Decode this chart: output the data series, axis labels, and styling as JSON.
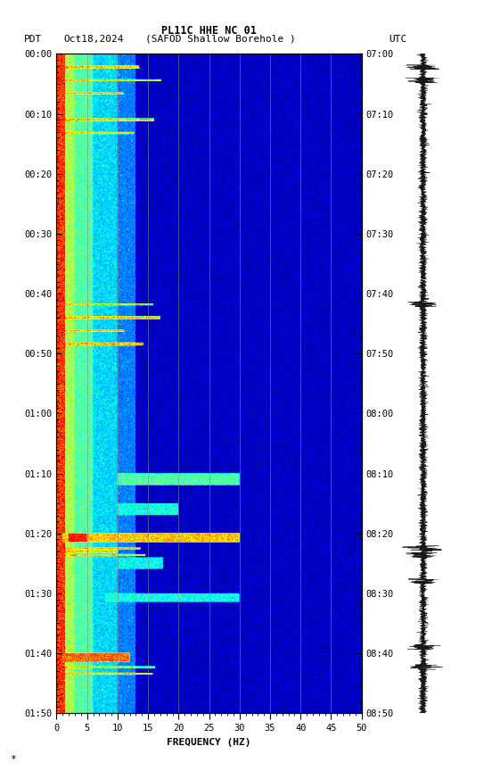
{
  "title_line1": "PL11C HHE NC 01",
  "xlabel": "FREQUENCY (HZ)",
  "freq_min": 0,
  "freq_max": 50,
  "time_labels_pdt": [
    "00:00",
    "00:10",
    "00:20",
    "00:30",
    "00:40",
    "00:50",
    "01:00",
    "01:10",
    "01:20",
    "01:30",
    "01:40",
    "01:50"
  ],
  "time_labels_utc": [
    "07:00",
    "07:10",
    "07:20",
    "07:30",
    "07:40",
    "07:50",
    "08:00",
    "08:10",
    "08:20",
    "08:30",
    "08:40",
    "08:50"
  ],
  "freq_ticks": [
    0,
    5,
    10,
    15,
    20,
    25,
    30,
    35,
    40,
    45,
    50
  ],
  "grid_freq": [
    5,
    10,
    15,
    20,
    25,
    30,
    35,
    40,
    45
  ],
  "fig_bg": "#ffffff",
  "colormap": "jet",
  "n_time": 1100,
  "n_freq": 500
}
